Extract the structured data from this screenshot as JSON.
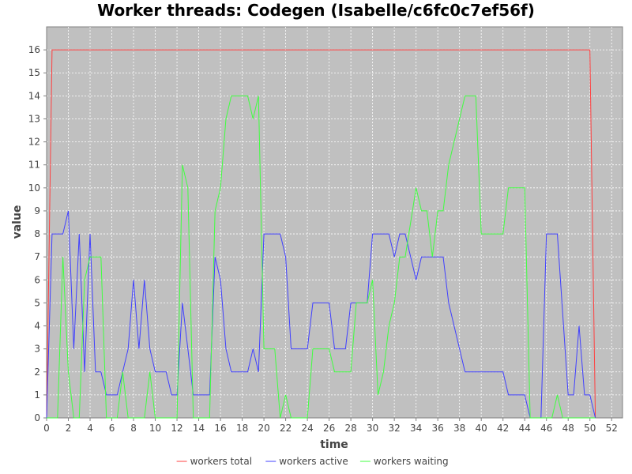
{
  "chart_data": {
    "type": "line",
    "title": "Worker threads: Codegen (Isabelle/c6fc0c7ef56f)",
    "xlabel": "time",
    "ylabel": "value",
    "xlim": [
      0,
      53
    ],
    "ylim": [
      0,
      17
    ],
    "x_ticks": [
      0,
      2,
      4,
      6,
      8,
      10,
      12,
      14,
      16,
      18,
      20,
      22,
      24,
      26,
      28,
      30,
      32,
      34,
      36,
      38,
      40,
      42,
      44,
      46,
      48,
      50,
      52
    ],
    "y_ticks": [
      0,
      1,
      2,
      3,
      4,
      5,
      6,
      7,
      8,
      9,
      10,
      11,
      12,
      13,
      14,
      15,
      16
    ],
    "grid": true,
    "legend_position": "bottom",
    "background": "#c0c0c0",
    "series": [
      {
        "name": "workers total",
        "color": "#ff4040",
        "points": [
          [
            0,
            0
          ],
          [
            0.5,
            16
          ],
          [
            50.0,
            16
          ],
          [
            50.5,
            0
          ]
        ]
      },
      {
        "name": "workers active",
        "color": "#4040ff",
        "points": [
          [
            0,
            0
          ],
          [
            0.5,
            8
          ],
          [
            1.5,
            8
          ],
          [
            2.0,
            9
          ],
          [
            2.5,
            3
          ],
          [
            3.0,
            8
          ],
          [
            3.5,
            2
          ],
          [
            4.0,
            8
          ],
          [
            4.5,
            2
          ],
          [
            5.0,
            2
          ],
          [
            5.5,
            1
          ],
          [
            6.5,
            1
          ],
          [
            7.5,
            3
          ],
          [
            8.0,
            6
          ],
          [
            8.5,
            3
          ],
          [
            9.0,
            6
          ],
          [
            9.5,
            3
          ],
          [
            10.0,
            2
          ],
          [
            11.0,
            2
          ],
          [
            11.5,
            1
          ],
          [
            12.0,
            1
          ],
          [
            12.5,
            5
          ],
          [
            13.5,
            1
          ],
          [
            15.0,
            1
          ],
          [
            15.5,
            7
          ],
          [
            16.0,
            6
          ],
          [
            16.5,
            3
          ],
          [
            17.0,
            2
          ],
          [
            18.5,
            2
          ],
          [
            19.0,
            3
          ],
          [
            19.5,
            2
          ],
          [
            20.0,
            8
          ],
          [
            21.5,
            8
          ],
          [
            22.0,
            7
          ],
          [
            22.5,
            3
          ],
          [
            24.0,
            3
          ],
          [
            24.5,
            5
          ],
          [
            26.0,
            5
          ],
          [
            26.5,
            3
          ],
          [
            27.5,
            3
          ],
          [
            28.0,
            5
          ],
          [
            29.5,
            5
          ],
          [
            30.0,
            8
          ],
          [
            31.5,
            8
          ],
          [
            32.0,
            7
          ],
          [
            32.5,
            8
          ],
          [
            33.0,
            8
          ],
          [
            34.0,
            6
          ],
          [
            34.5,
            7
          ],
          [
            36.5,
            7
          ],
          [
            37.0,
            5
          ],
          [
            38.0,
            3
          ],
          [
            38.5,
            2
          ],
          [
            42.0,
            2
          ],
          [
            42.5,
            1
          ],
          [
            44.0,
            1
          ],
          [
            44.5,
            0
          ],
          [
            45.5,
            0
          ],
          [
            46.0,
            8
          ],
          [
            47.0,
            8
          ],
          [
            48.0,
            1
          ],
          [
            48.5,
            1
          ],
          [
            49.0,
            4
          ],
          [
            49.5,
            1
          ],
          [
            50.0,
            1
          ],
          [
            50.5,
            0
          ]
        ]
      },
      {
        "name": "workers waiting",
        "color": "#40ff40",
        "points": [
          [
            0,
            0
          ],
          [
            1.0,
            0
          ],
          [
            1.5,
            7
          ],
          [
            2.0,
            2
          ],
          [
            2.5,
            0
          ],
          [
            3.0,
            0
          ],
          [
            3.5,
            6
          ],
          [
            4.0,
            7
          ],
          [
            4.5,
            7
          ],
          [
            5.0,
            7
          ],
          [
            5.5,
            0
          ],
          [
            6.5,
            0
          ],
          [
            7.0,
            2
          ],
          [
            7.5,
            0
          ],
          [
            9.0,
            0
          ],
          [
            9.5,
            2
          ],
          [
            10.0,
            0
          ],
          [
            12.0,
            0
          ],
          [
            12.5,
            11
          ],
          [
            13.0,
            10
          ],
          [
            13.5,
            0
          ],
          [
            15.0,
            0
          ],
          [
            15.5,
            9
          ],
          [
            16.0,
            10
          ],
          [
            16.5,
            13
          ],
          [
            17.0,
            14
          ],
          [
            18.5,
            14
          ],
          [
            19.0,
            13
          ],
          [
            19.5,
            14
          ],
          [
            20.0,
            3
          ],
          [
            21.0,
            3
          ],
          [
            21.5,
            0
          ],
          [
            22.0,
            1
          ],
          [
            22.5,
            0
          ],
          [
            24.0,
            0
          ],
          [
            24.5,
            3
          ],
          [
            26.0,
            3
          ],
          [
            26.5,
            2
          ],
          [
            28.0,
            2
          ],
          [
            28.5,
            5
          ],
          [
            29.5,
            5
          ],
          [
            30.0,
            6
          ],
          [
            30.5,
            1
          ],
          [
            31.0,
            2
          ],
          [
            31.5,
            4
          ],
          [
            32.0,
            5
          ],
          [
            32.5,
            7
          ],
          [
            33.0,
            7
          ],
          [
            34.0,
            10
          ],
          [
            34.5,
            9
          ],
          [
            35.0,
            9
          ],
          [
            35.5,
            7
          ],
          [
            36.0,
            9
          ],
          [
            36.5,
            9
          ],
          [
            37.0,
            11
          ],
          [
            38.0,
            13
          ],
          [
            38.5,
            14
          ],
          [
            39.5,
            14
          ],
          [
            40.0,
            8
          ],
          [
            42.0,
            8
          ],
          [
            42.5,
            10
          ],
          [
            44.0,
            10
          ],
          [
            44.5,
            0
          ],
          [
            46.5,
            0
          ],
          [
            47.0,
            1
          ],
          [
            47.5,
            0
          ],
          [
            50.0,
            0
          ],
          [
            50.5,
            0
          ]
        ]
      }
    ]
  }
}
